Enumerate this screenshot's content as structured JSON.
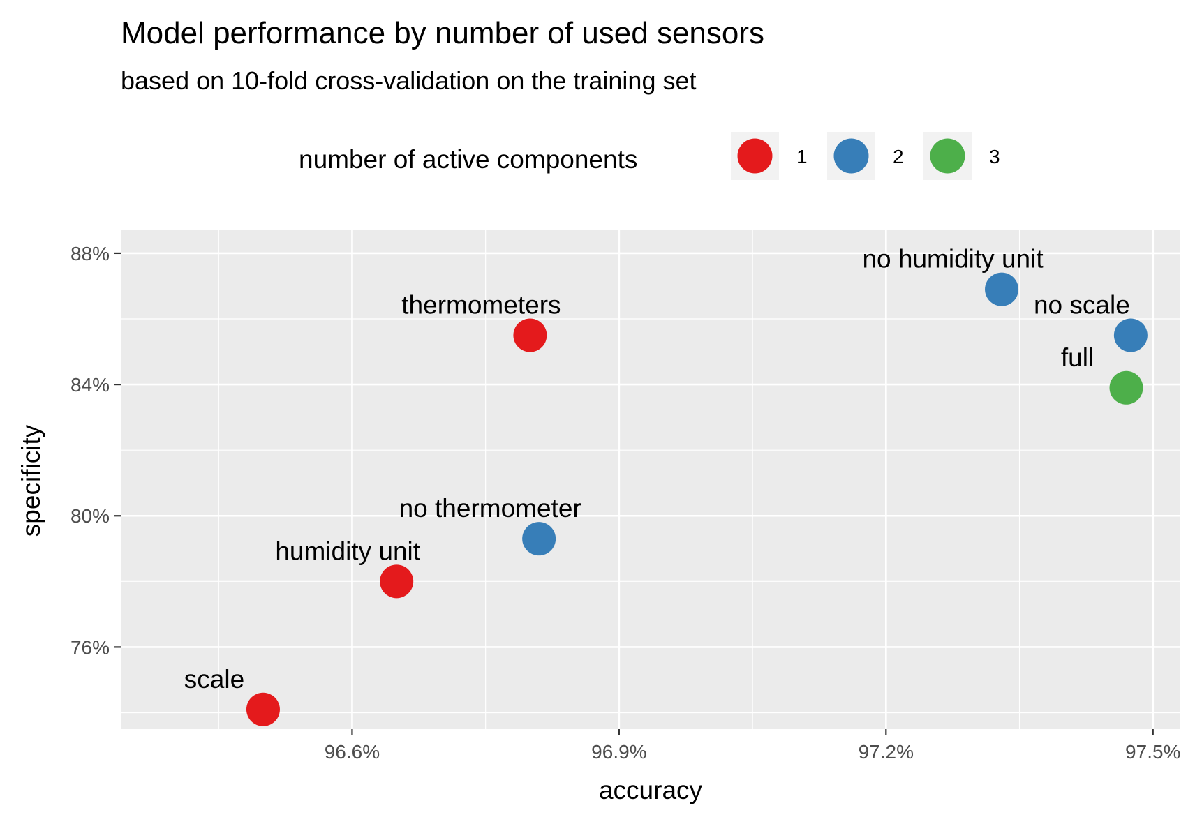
{
  "chart_data": {
    "type": "scatter",
    "title": "Model performance by number of used sensors",
    "subtitle": "based on 10-fold cross-validation on the training set",
    "xlabel": "accuracy",
    "ylabel": "specificity",
    "xlim": [
      96.34,
      97.53
    ],
    "ylim": [
      73.5,
      88.7
    ],
    "x_ticks": [
      96.6,
      96.9,
      97.2,
      97.5
    ],
    "x_tick_labels": [
      "96.6%",
      "96.9%",
      "97.2%",
      "97.5%"
    ],
    "y_ticks": [
      76,
      80,
      84,
      88
    ],
    "y_tick_labels": [
      "76%",
      "80%",
      "84%",
      "88%"
    ],
    "grid": true,
    "legend": {
      "title": "number of active components",
      "position": "top",
      "entries": [
        {
          "label": "1",
          "color": "#E41A1C"
        },
        {
          "label": "2",
          "color": "#377EB8"
        },
        {
          "label": "3",
          "color": "#4DAF4A"
        }
      ]
    },
    "points": [
      {
        "label": "scale",
        "x": 96.5,
        "y": 74.1,
        "group": "1",
        "color": "#E41A1C"
      },
      {
        "label": "humidity unit",
        "x": 96.65,
        "y": 78.0,
        "group": "1",
        "color": "#E41A1C"
      },
      {
        "label": "thermometers",
        "x": 96.8,
        "y": 85.5,
        "group": "1",
        "color": "#E41A1C"
      },
      {
        "label": "no thermometer",
        "x": 96.81,
        "y": 79.3,
        "group": "2",
        "color": "#377EB8"
      },
      {
        "label": "no humidity unit",
        "x": 97.33,
        "y": 86.9,
        "group": "2",
        "color": "#377EB8"
      },
      {
        "label": "no scale",
        "x": 97.475,
        "y": 85.5,
        "group": "2",
        "color": "#377EB8"
      },
      {
        "label": "full",
        "x": 97.47,
        "y": 83.9,
        "group": "3",
        "color": "#4DAF4A"
      }
    ]
  }
}
